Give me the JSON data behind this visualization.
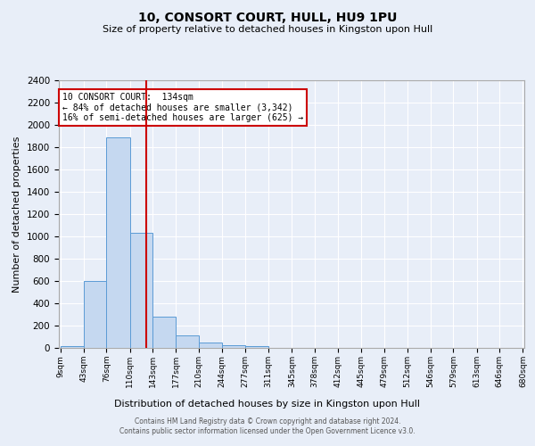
{
  "title": "10, CONSORT COURT, HULL, HU9 1PU",
  "subtitle": "Size of property relative to detached houses in Kingston upon Hull",
  "xlabel": "Distribution of detached houses by size in Kingston upon Hull",
  "ylabel": "Number of detached properties",
  "bar_color": "#c5d8f0",
  "bar_edge_color": "#5b9bd5",
  "background_color": "#e8eef8",
  "grid_color": "#ffffff",
  "bin_labels": [
    "9sqm",
    "43sqm",
    "76sqm",
    "110sqm",
    "143sqm",
    "177sqm",
    "210sqm",
    "244sqm",
    "277sqm",
    "311sqm",
    "345sqm",
    "378sqm",
    "412sqm",
    "445sqm",
    "479sqm",
    "512sqm",
    "546sqm",
    "579sqm",
    "613sqm",
    "646sqm",
    "680sqm"
  ],
  "bar_heights": [
    20,
    600,
    1890,
    1030,
    280,
    110,
    45,
    25,
    20,
    0,
    0,
    0,
    0,
    0,
    0,
    0,
    0,
    0,
    0,
    0
  ],
  "num_bins": 20,
  "bin_edges": [
    9,
    43,
    76,
    110,
    143,
    177,
    210,
    244,
    277,
    311,
    345,
    378,
    412,
    445,
    479,
    512,
    546,
    579,
    613,
    646,
    680
  ],
  "property_size": 134,
  "red_line_color": "#cc0000",
  "annotation_text_line1": "10 CONSORT COURT:  134sqm",
  "annotation_text_line2": "← 84% of detached houses are smaller (3,342)",
  "annotation_text_line3": "16% of semi-detached houses are larger (625) →",
  "annotation_box_color": "#ffffff",
  "annotation_box_edge_color": "#cc0000",
  "ylim": [
    0,
    2400
  ],
  "yticks": [
    0,
    200,
    400,
    600,
    800,
    1000,
    1200,
    1400,
    1600,
    1800,
    2000,
    2200,
    2400
  ],
  "footer_line1": "Contains HM Land Registry data © Crown copyright and database right 2024.",
  "footer_line2": "Contains public sector information licensed under the Open Government Licence v3.0."
}
